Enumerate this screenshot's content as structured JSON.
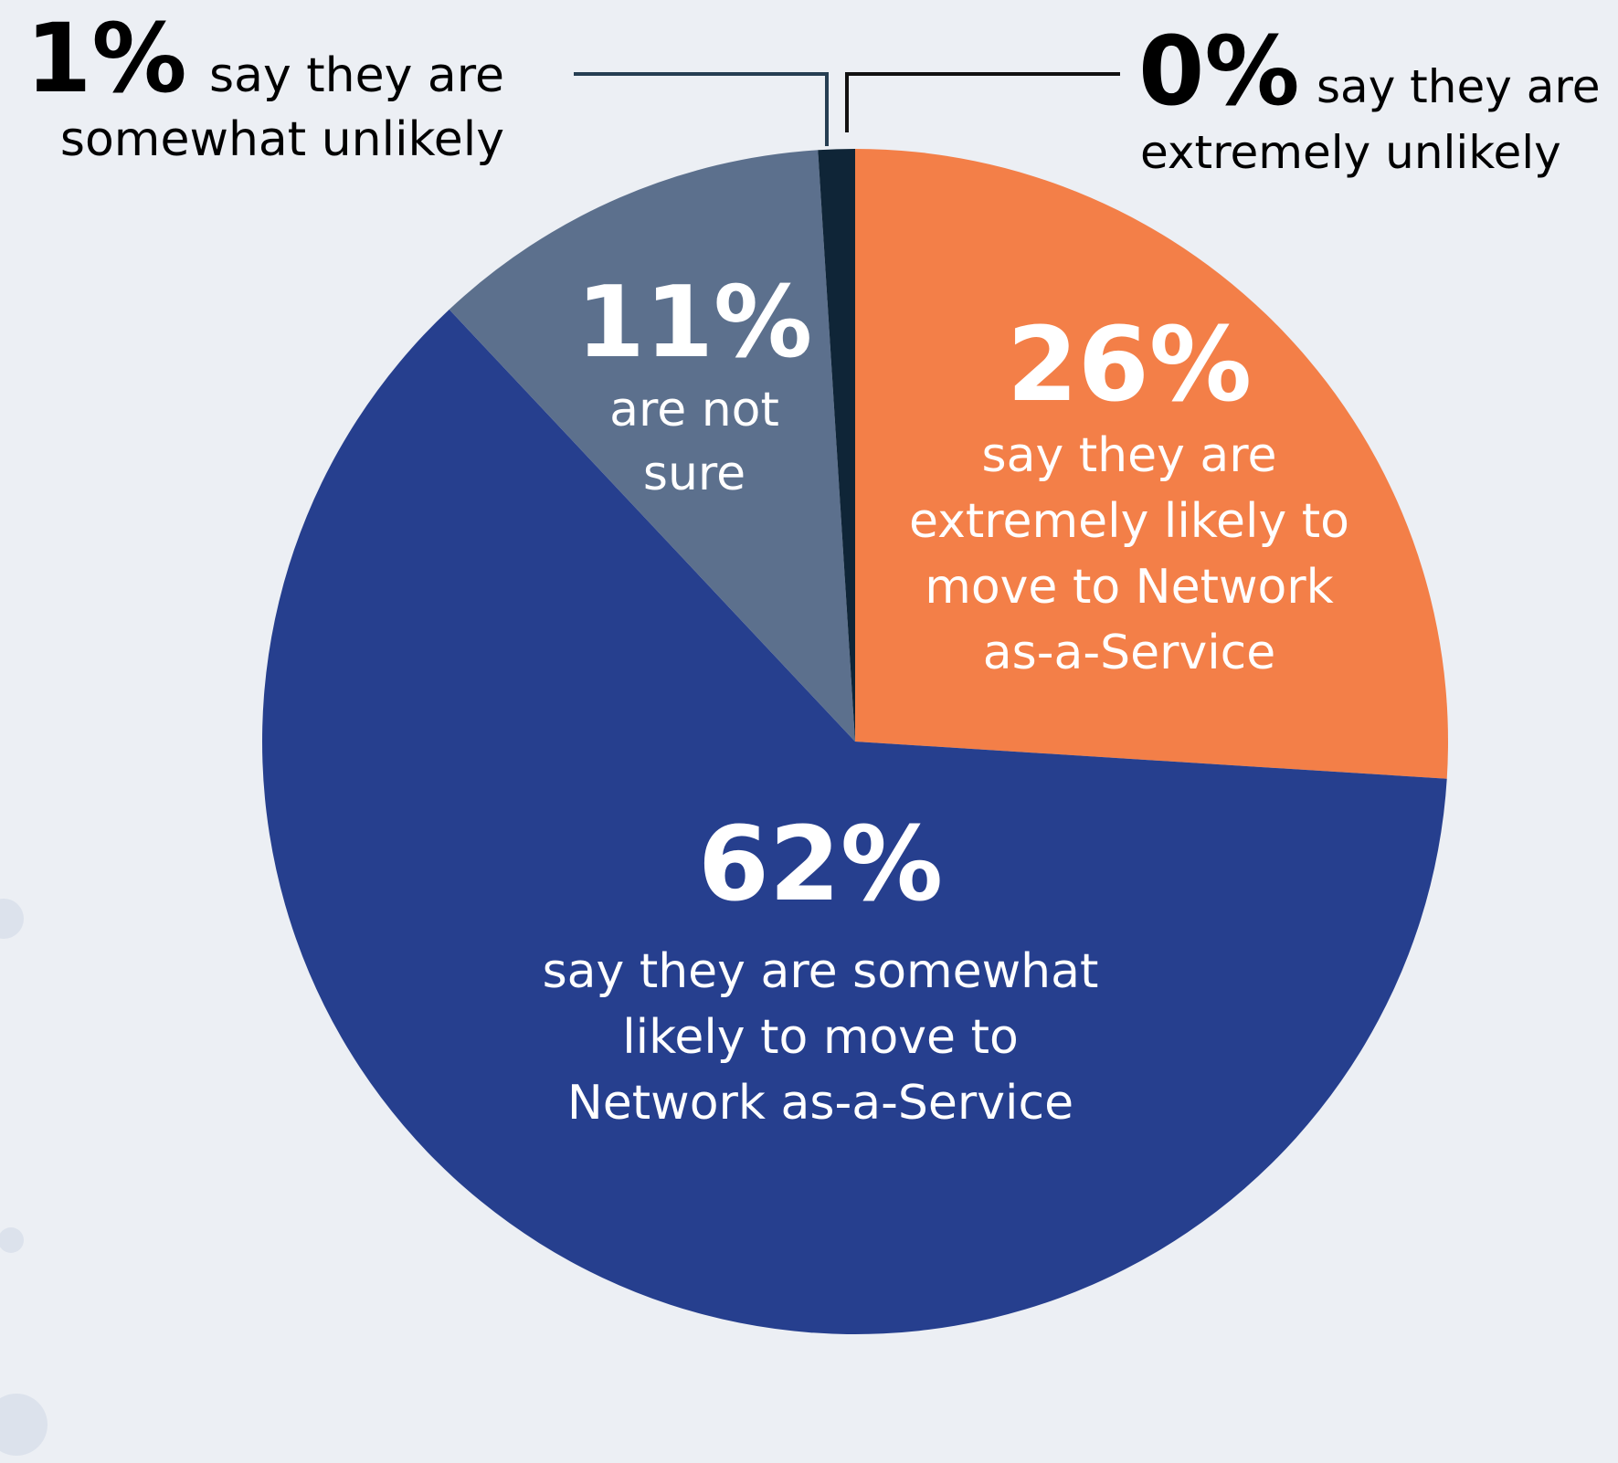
{
  "chart_data": {
    "type": "pie",
    "title": "",
    "start_angle_deg": 0,
    "direction": "clockwise",
    "slices": [
      {
        "key": "extremely_likely",
        "value": 26,
        "percent_label": "26%",
        "description_lines": [
          "say they are",
          "extremely likely to",
          "move to Network",
          "as-a-Service"
        ],
        "color": "#F37F48"
      },
      {
        "key": "somewhat_likely",
        "value": 62,
        "percent_label": "62%",
        "description_lines": [
          "say they are somewhat",
          "likely to move to",
          "Network as-a-Service"
        ],
        "color": "#263F8E"
      },
      {
        "key": "not_sure",
        "value": 11,
        "percent_label": "11%",
        "description_lines": [
          "are not",
          "sure"
        ],
        "color": "#5C708D"
      },
      {
        "key": "somewhat_unlikely",
        "value": 1,
        "percent_label": "1%",
        "description_lines": [
          "say they are",
          "somewhat unlikely"
        ],
        "color": "#0F2537"
      },
      {
        "key": "extremely_unlikely",
        "value": 0,
        "percent_label": "0%",
        "description_lines": [
          "say they are",
          "extremely unlikely"
        ],
        "color": "#0B1722"
      }
    ]
  },
  "colors": {
    "background": "#ECEFF4",
    "outside_text": "#000000",
    "inside_text": "#FFFFFF",
    "leader_line_somewhat_unlikely": "#263E52",
    "leader_line_extremely_unlikely": "#111111",
    "decorative_dots": "#DCE2EC"
  }
}
